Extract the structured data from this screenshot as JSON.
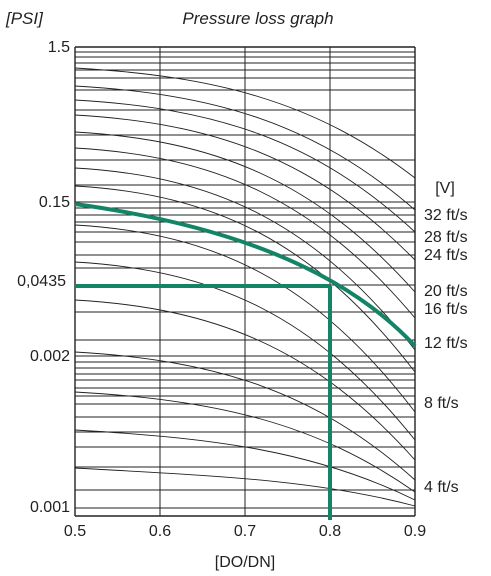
{
  "chart_data": {
    "type": "line",
    "title": "Pressure loss graph",
    "ylabel": "[PSI]",
    "xlabel": "[DO/DN]",
    "legend_title": "[V]",
    "xlim": [
      0.5,
      0.9
    ],
    "x_ticks": [
      "0.5",
      "0.6",
      "0.7",
      "0.8",
      "0.9"
    ],
    "y_ticks": [
      "1.5",
      "0.15",
      "0,0435",
      "0.002",
      "0.001"
    ],
    "grid": true,
    "velocity_labels": [
      "32 ft/s",
      "28 ft/s",
      "24 ft/s",
      "20 ft/s",
      "16 ft/s",
      "12 ft/s",
      "8 ft/s",
      "4 ft/s"
    ],
    "highlight": {
      "example_x": 0.8,
      "example_y": "0,0435",
      "velocity": "12 ft/s",
      "color": "#138566"
    }
  }
}
